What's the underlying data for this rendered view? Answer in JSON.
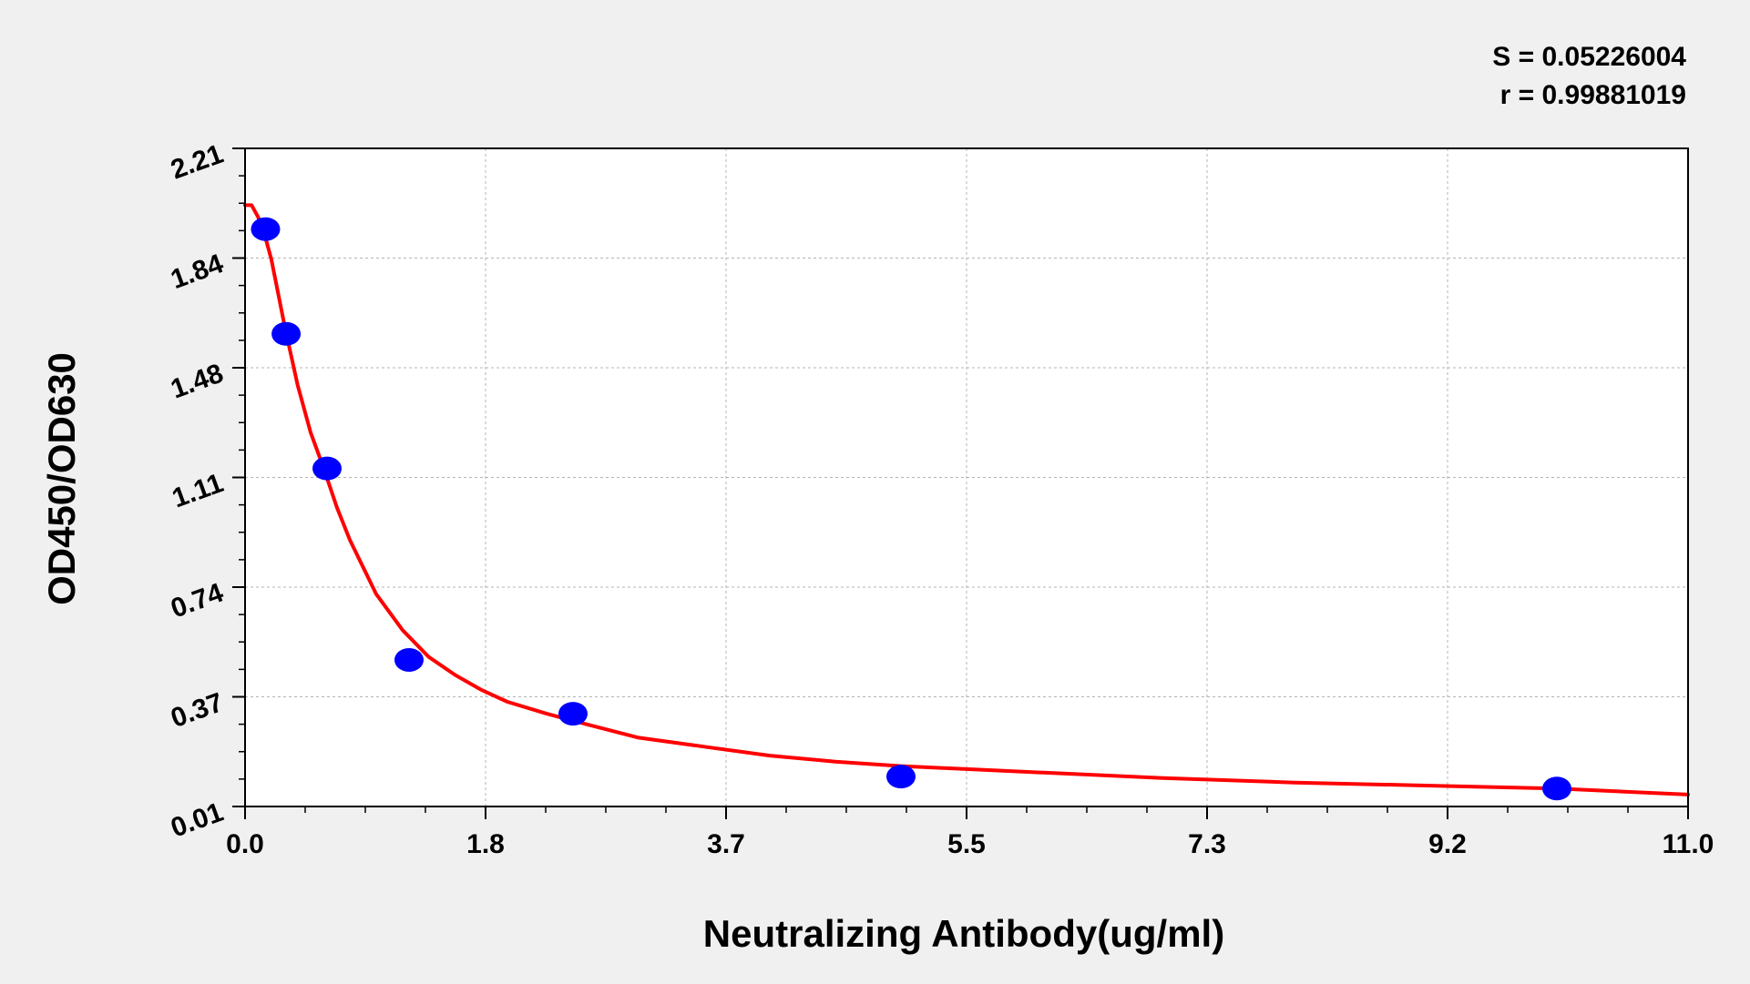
{
  "chart_data": {
    "type": "scatter",
    "xlabel": "Neutralizing Antibody(ug/ml)",
    "ylabel": "OD450/OD630",
    "xlim": [
      0.0,
      11.0
    ],
    "ylim": [
      0.01,
      2.21
    ],
    "x_ticks": [
      "0.0",
      "1.8",
      "3.7",
      "5.5",
      "7.3",
      "9.2",
      "11.0"
    ],
    "y_ticks": [
      "0.01",
      "0.37",
      "0.74",
      "1.11",
      "1.48",
      "1.84",
      "2.21"
    ],
    "grid": true,
    "annotations": {
      "s_value": "S = 0.05226004",
      "r_value": "r = 0.99881019"
    },
    "series": [
      {
        "type": "scatter",
        "color": "#0000ff",
        "points": [
          {
            "x": 0.156,
            "y": 1.94
          },
          {
            "x": 0.313,
            "y": 1.59
          },
          {
            "x": 0.625,
            "y": 1.14
          },
          {
            "x": 1.25,
            "y": 0.5
          },
          {
            "x": 2.5,
            "y": 0.32
          },
          {
            "x": 5.0,
            "y": 0.11
          },
          {
            "x": 10.0,
            "y": 0.07
          }
        ]
      },
      {
        "type": "line",
        "color": "#ff0000",
        "points": [
          {
            "x": 0.0,
            "y": 2.02
          },
          {
            "x": 0.05,
            "y": 2.02
          },
          {
            "x": 0.1,
            "y": 1.98
          },
          {
            "x": 0.15,
            "y": 1.92
          },
          {
            "x": 0.2,
            "y": 1.84
          },
          {
            "x": 0.3,
            "y": 1.62
          },
          {
            "x": 0.4,
            "y": 1.42
          },
          {
            "x": 0.5,
            "y": 1.26
          },
          {
            "x": 0.6,
            "y": 1.14
          },
          {
            "x": 0.7,
            "y": 1.01
          },
          {
            "x": 0.8,
            "y": 0.9
          },
          {
            "x": 0.9,
            "y": 0.81
          },
          {
            "x": 1.0,
            "y": 0.72
          },
          {
            "x": 1.2,
            "y": 0.6
          },
          {
            "x": 1.4,
            "y": 0.51
          },
          {
            "x": 1.6,
            "y": 0.45
          },
          {
            "x": 1.8,
            "y": 0.4
          },
          {
            "x": 2.0,
            "y": 0.36
          },
          {
            "x": 2.3,
            "y": 0.32
          },
          {
            "x": 2.6,
            "y": 0.285
          },
          {
            "x": 3.0,
            "y": 0.24
          },
          {
            "x": 3.5,
            "y": 0.21
          },
          {
            "x": 4.0,
            "y": 0.18
          },
          {
            "x": 4.5,
            "y": 0.16
          },
          {
            "x": 5.0,
            "y": 0.145
          },
          {
            "x": 5.5,
            "y": 0.135
          },
          {
            "x": 6.0,
            "y": 0.125
          },
          {
            "x": 7.0,
            "y": 0.105
          },
          {
            "x": 8.0,
            "y": 0.09
          },
          {
            "x": 9.0,
            "y": 0.08
          },
          {
            "x": 10.0,
            "y": 0.07
          },
          {
            "x": 11.0,
            "y": 0.05
          }
        ]
      }
    ]
  }
}
